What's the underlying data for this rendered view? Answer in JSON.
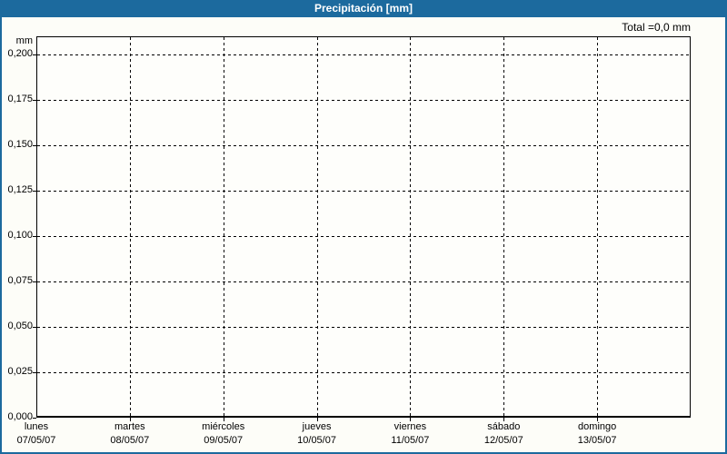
{
  "header": {
    "title": "Precipitación [mm]"
  },
  "summary": {
    "total_label": "Total =0,0 mm"
  },
  "y_axis": {
    "unit": "mm"
  },
  "chart_data": {
    "type": "bar",
    "title": "Precipitación [mm]",
    "ylabel": "mm",
    "ylim": [
      0,
      0.2
    ],
    "grid": true,
    "legend_position": "none",
    "y_ticks": [
      {
        "value": 0.2,
        "label": "0,200"
      },
      {
        "value": 0.175,
        "label": "0,175"
      },
      {
        "value": 0.15,
        "label": "0,150"
      },
      {
        "value": 0.125,
        "label": "0,125"
      },
      {
        "value": 0.1,
        "label": "0,100"
      },
      {
        "value": 0.075,
        "label": "0,075"
      },
      {
        "value": 0.05,
        "label": "0,050"
      },
      {
        "value": 0.025,
        "label": "0,025"
      },
      {
        "value": 0.0,
        "label": "0,000"
      }
    ],
    "categories": [
      {
        "day": "lunes",
        "date": "07/05/07"
      },
      {
        "day": "martes",
        "date": "08/05/07"
      },
      {
        "day": "miércoles",
        "date": "09/05/07"
      },
      {
        "day": "jueves",
        "date": "10/05/07"
      },
      {
        "day": "viernes",
        "date": "11/05/07"
      },
      {
        "day": "sábado",
        "date": "12/05/07"
      },
      {
        "day": "domingo",
        "date": "13/05/07"
      }
    ],
    "series": [
      {
        "name": "Precipitación",
        "values": [
          0,
          0,
          0,
          0,
          0,
          0,
          0
        ]
      }
    ],
    "total": "0,0 mm"
  },
  "colors": {
    "accent_blue": "#1c6a9e",
    "grid_line": "#000000",
    "text": "#000000",
    "title_text": "#ffffff",
    "background": "#fdfdf8"
  }
}
